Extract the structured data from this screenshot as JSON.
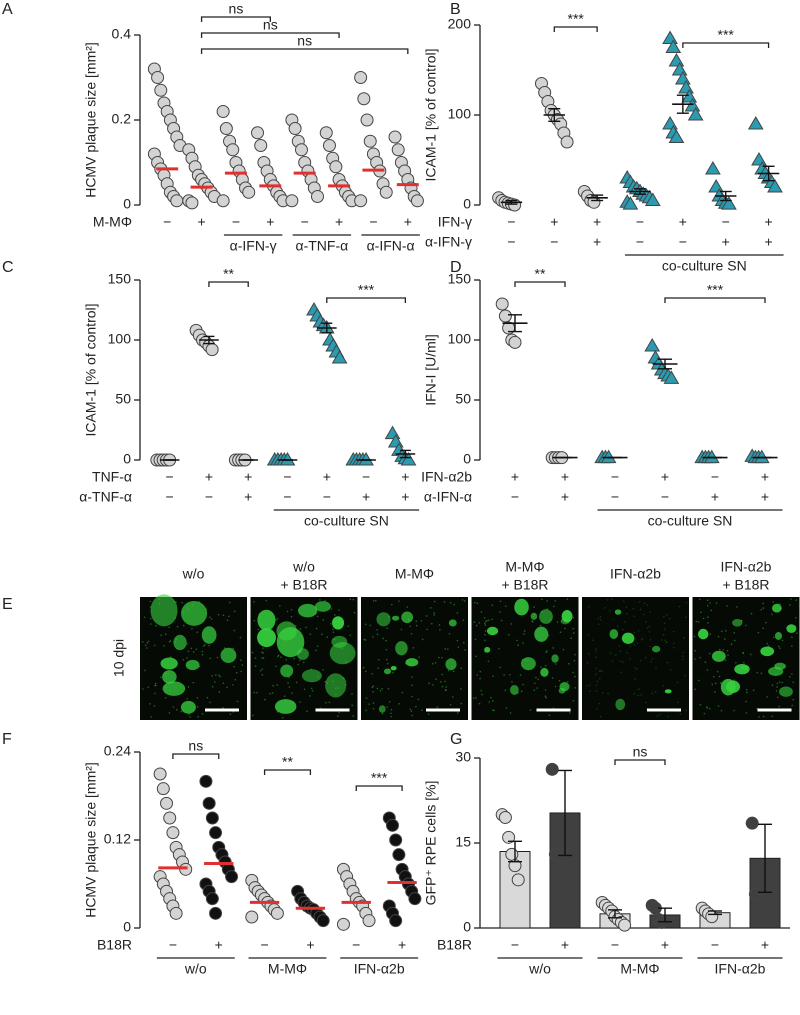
{
  "chart_data": [
    {
      "type": "dot",
      "label": "A",
      "ylabel": "HCMV plaque size [mm²]",
      "ylim": [
        0,
        0.4
      ],
      "yticks": [
        0,
        0.2,
        0.4
      ],
      "groups": [
        {
          "marker": "circle",
          "color": "#d3d3d3",
          "median": 0.085,
          "points": [
            0.32,
            0.3,
            0.27,
            0.24,
            0.22,
            0.2,
            0.18,
            0.16,
            0.14,
            0.12,
            0.1,
            0.085,
            0.07,
            0.05,
            0.03,
            0.02,
            0.01
          ]
        },
        {
          "marker": "circle",
          "color": "#d3d3d3",
          "median": 0.042,
          "points": [
            0.13,
            0.11,
            0.09,
            0.07,
            0.06,
            0.05,
            0.04,
            0.03,
            0.02,
            0.01,
            0.005
          ]
        },
        {
          "marker": "circle",
          "color": "#d3d3d3",
          "median": 0.075,
          "points": [
            0.22,
            0.18,
            0.15,
            0.13,
            0.1,
            0.08,
            0.06,
            0.04,
            0.03,
            0.01
          ]
        },
        {
          "marker": "circle",
          "color": "#d3d3d3",
          "median": 0.045,
          "points": [
            0.17,
            0.14,
            0.1,
            0.08,
            0.06,
            0.045,
            0.03,
            0.02,
            0.01
          ]
        },
        {
          "marker": "circle",
          "color": "#d3d3d3",
          "median": 0.075,
          "points": [
            0.2,
            0.18,
            0.15,
            0.13,
            0.1,
            0.08,
            0.06,
            0.04,
            0.02,
            0.01
          ]
        },
        {
          "marker": "circle",
          "color": "#d3d3d3",
          "median": 0.045,
          "points": [
            0.17,
            0.14,
            0.11,
            0.09,
            0.06,
            0.045,
            0.03,
            0.02,
            0.01
          ]
        },
        {
          "marker": "circle",
          "color": "#d3d3d3",
          "median": 0.082,
          "points": [
            0.3,
            0.25,
            0.2,
            0.15,
            0.12,
            0.1,
            0.08,
            0.05,
            0.03,
            0.01
          ]
        },
        {
          "marker": "circle",
          "color": "#d3d3d3",
          "median": 0.048,
          "points": [
            0.16,
            0.13,
            0.1,
            0.08,
            0.06,
            0.04,
            0.02,
            0.01
          ]
        }
      ],
      "rows": [
        {
          "label": "M-MΦ",
          "values": [
            "−",
            "+",
            "−",
            "+",
            "−",
            "+",
            "−",
            "+"
          ]
        }
      ],
      "underline": [
        null,
        null,
        "α-IFN-γ",
        "α-IFN-γ",
        "α-TNF-α",
        "α-TNF-α",
        "α-IFN-α",
        "α-IFN-α"
      ],
      "brackets": [
        {
          "label": "ns",
          "between": [
            1,
            3
          ]
        },
        {
          "label": "ns",
          "between": [
            1,
            5
          ]
        },
        {
          "label": "ns",
          "between": [
            1,
            7
          ]
        }
      ]
    },
    {
      "type": "dot",
      "label": "B",
      "ylabel": "ICAM-1 [% of control]",
      "ylim": [
        0,
        200
      ],
      "yticks": [
        0,
        100,
        200
      ],
      "groups": [
        {
          "marker": "circle",
          "color": "#d3d3d3",
          "mean": 3,
          "sem": 2,
          "points": [
            8,
            5,
            3,
            2,
            1,
            0
          ]
        },
        {
          "marker": "circle",
          "color": "#d3d3d3",
          "mean": 100,
          "sem": 7,
          "points": [
            135,
            125,
            115,
            105,
            100,
            95,
            90,
            80,
            70
          ]
        },
        {
          "marker": "circle",
          "color": "#d3d3d3",
          "mean": 8,
          "sem": 3,
          "points": [
            15,
            10,
            5,
            3
          ]
        },
        {
          "marker": "triangle",
          "color": "#2a9bb0",
          "mean": 15,
          "sem": 3,
          "points": [
            30,
            25,
            20,
            18,
            15,
            12,
            10,
            8,
            5,
            3,
            1
          ]
        },
        {
          "marker": "triangle",
          "color": "#2a9bb0",
          "mean": 112,
          "sem": 10,
          "points": [
            185,
            175,
            160,
            150,
            140,
            130,
            120,
            110,
            100,
            90,
            80,
            75
          ]
        },
        {
          "marker": "triangle",
          "color": "#2a9bb0",
          "mean": 10,
          "sem": 5,
          "points": [
            40,
            20,
            10,
            5,
            2,
            1
          ]
        },
        {
          "marker": "triangle",
          "color": "#2a9bb0",
          "mean": 35,
          "sem": 8,
          "points": [
            90,
            50,
            40,
            35,
            30,
            25,
            20
          ]
        }
      ],
      "rows": [
        {
          "label": "IFN-γ",
          "values": [
            "−",
            "+",
            "+",
            "−",
            "+",
            "−",
            "+"
          ]
        },
        {
          "label": "α-IFN-γ",
          "values": [
            "−",
            "−",
            "+",
            "−",
            "−",
            "+",
            "+"
          ]
        }
      ],
      "underline": [
        null,
        null,
        null,
        "co-culture SN",
        "co-culture SN",
        "co-culture SN",
        "co-culture SN"
      ],
      "brackets": [
        {
          "label": "***",
          "between": [
            1,
            2
          ]
        },
        {
          "label": "***",
          "between": [
            4,
            6
          ]
        }
      ]
    },
    {
      "type": "dot",
      "label": "C",
      "ylabel": "ICAM-1 [% of control]",
      "ylim": [
        0,
        150
      ],
      "yticks": [
        0,
        50,
        100,
        150
      ],
      "groups": [
        {
          "marker": "circle",
          "color": "#d3d3d3",
          "mean": 0,
          "sem": 0,
          "points": [
            0,
            0,
            0,
            0,
            0
          ]
        },
        {
          "marker": "circle",
          "color": "#d3d3d3",
          "mean": 100,
          "sem": 3,
          "points": [
            108,
            104,
            100,
            98,
            95,
            92
          ]
        },
        {
          "marker": "circle",
          "color": "#d3d3d3",
          "mean": 0,
          "sem": 0,
          "points": [
            0,
            0,
            0,
            0
          ]
        },
        {
          "marker": "triangle",
          "color": "#2a9bb0",
          "mean": 0,
          "sem": 0,
          "points": [
            0,
            0,
            0,
            0,
            0
          ]
        },
        {
          "marker": "triangle",
          "color": "#2a9bb0",
          "mean": 110,
          "sem": 4,
          "points": [
            125,
            120,
            115,
            112,
            110,
            100,
            95,
            90,
            85
          ]
        },
        {
          "marker": "triangle",
          "color": "#2a9bb0",
          "mean": 0,
          "sem": 0,
          "points": [
            0,
            0,
            0,
            0,
            0
          ]
        },
        {
          "marker": "triangle",
          "color": "#2a9bb0",
          "mean": 5,
          "sem": 3,
          "points": [
            22,
            15,
            8,
            3,
            1,
            0
          ]
        }
      ],
      "rows": [
        {
          "label": "TNF-α",
          "values": [
            "−",
            "+",
            "+",
            "−",
            "+",
            "−",
            "+"
          ]
        },
        {
          "label": "α-TNF-α",
          "values": [
            "−",
            "−",
            "+",
            "−",
            "−",
            "+",
            "+"
          ]
        }
      ],
      "underline": [
        null,
        null,
        null,
        "co-culture SN",
        "co-culture SN",
        "co-culture SN",
        "co-culture SN"
      ],
      "brackets": [
        {
          "label": "**",
          "between": [
            1,
            2
          ]
        },
        {
          "label": "***",
          "between": [
            4,
            6
          ]
        }
      ]
    },
    {
      "type": "dot",
      "label": "D",
      "ylabel": "IFN-I [U/ml]",
      "ylim": [
        0,
        150
      ],
      "yticks": [
        0,
        50,
        100,
        150
      ],
      "groups": [
        {
          "marker": "circle",
          "color": "#d3d3d3",
          "mean": 114,
          "sem": 7,
          "points": [
            130,
            120,
            110,
            100,
            98
          ]
        },
        {
          "marker": "circle",
          "color": "#d3d3d3",
          "mean": 2,
          "sem": 0,
          "points": [
            2,
            2,
            2,
            2
          ]
        },
        {
          "marker": "triangle",
          "color": "#2a9bb0",
          "mean": 2,
          "sem": 0,
          "points": [
            2,
            2,
            2
          ]
        },
        {
          "marker": "triangle",
          "color": "#2a9bb0",
          "mean": 80,
          "sem": 4,
          "points": [
            95,
            85,
            80,
            75,
            72,
            70,
            68
          ]
        },
        {
          "marker": "triangle",
          "color": "#2a9bb0",
          "mean": 2,
          "sem": 0,
          "points": [
            2,
            2,
            2,
            2
          ]
        },
        {
          "marker": "triangle",
          "color": "#2a9bb0",
          "mean": 2,
          "sem": 0,
          "points": [
            3,
            2,
            2,
            2
          ]
        }
      ],
      "rows": [
        {
          "label": "IFN-α2b",
          "values": [
            "+",
            "+",
            "−",
            "+",
            "−",
            "+"
          ]
        },
        {
          "label": "α-IFN-α",
          "values": [
            "−",
            "+",
            "−",
            "−",
            "+",
            "+"
          ]
        }
      ],
      "underline": [
        null,
        null,
        "co-culture SN",
        "co-culture SN",
        "co-culture SN",
        "co-culture SN"
      ],
      "brackets": [
        {
          "label": "**",
          "between": [
            0,
            1
          ]
        },
        {
          "label": "***",
          "between": [
            3,
            5
          ]
        }
      ]
    },
    {
      "type": "dot",
      "label": "F",
      "ylabel": "HCMV plaque size [mm²]",
      "ylim": [
        0,
        0.24
      ],
      "yticks": [
        0,
        0.12,
        0.24
      ],
      "groups": [
        {
          "marker": "circle",
          "color": "#d3d3d3",
          "median": 0.082,
          "points": [
            0.21,
            0.19,
            0.17,
            0.15,
            0.13,
            0.11,
            0.1,
            0.09,
            0.08,
            0.07,
            0.06,
            0.05,
            0.04,
            0.03,
            0.02
          ]
        },
        {
          "marker": "circle",
          "color": "#111111",
          "median": 0.088,
          "points": [
            0.2,
            0.17,
            0.15,
            0.13,
            0.11,
            0.1,
            0.09,
            0.08,
            0.07,
            0.06,
            0.05,
            0.04,
            0.02
          ]
        },
        {
          "marker": "circle",
          "color": "#d3d3d3",
          "median": 0.035,
          "points": [
            0.065,
            0.055,
            0.05,
            0.045,
            0.04,
            0.035,
            0.03,
            0.025,
            0.02,
            0.015
          ]
        },
        {
          "marker": "circle",
          "color": "#111111",
          "median": 0.027,
          "points": [
            0.05,
            0.04,
            0.035,
            0.03,
            0.027,
            0.025,
            0.02,
            0.015,
            0.01
          ]
        },
        {
          "marker": "circle",
          "color": "#d3d3d3",
          "median": 0.035,
          "points": [
            0.08,
            0.07,
            0.06,
            0.05,
            0.04,
            0.035,
            0.03,
            0.02,
            0.01,
            0.005
          ]
        },
        {
          "marker": "circle",
          "color": "#111111",
          "median": 0.062,
          "points": [
            0.15,
            0.14,
            0.12,
            0.1,
            0.08,
            0.07,
            0.06,
            0.05,
            0.04,
            0.03,
            0.02,
            0.01
          ]
        }
      ],
      "rows": [
        {
          "label": "B18R",
          "values": [
            "−",
            "+",
            "−",
            "+",
            "−",
            "+"
          ]
        }
      ],
      "underline": [
        "w/o",
        "w/o",
        "M-MΦ",
        "M-MΦ",
        "IFN-α2b",
        "IFN-α2b"
      ],
      "brackets": [
        {
          "label": "ns",
          "between": [
            0,
            1
          ]
        },
        {
          "label": "**",
          "between": [
            2,
            3
          ]
        },
        {
          "label": "***",
          "between": [
            4,
            5
          ]
        }
      ]
    },
    {
      "type": "bar",
      "label": "G",
      "ylabel": "GFP⁺ RPE cells [%]",
      "ylim": [
        0,
        30
      ],
      "yticks": [
        0,
        15,
        30
      ],
      "groups": [
        {
          "marker": "circle",
          "color": "#d9d9d9",
          "mean": 13.5,
          "sem": 1.8,
          "points": [
            20,
            19.5,
            16,
            13,
            11,
            8.5
          ]
        },
        {
          "marker": "circle",
          "color": "#404040",
          "mean": 20.3,
          "sem": 7.5,
          "points": [
            28,
            13
          ]
        },
        {
          "marker": "circle",
          "color": "#d9d9d9",
          "mean": 2.5,
          "sem": 0.7,
          "points": [
            4.5,
            4,
            3.5,
            3,
            2,
            1.5,
            1,
            0.5
          ]
        },
        {
          "marker": "circle",
          "color": "#404040",
          "mean": 2.3,
          "sem": 1.2,
          "points": [
            4,
            3.5,
            1.5,
            1
          ]
        },
        {
          "marker": "circle",
          "color": "#d9d9d9",
          "mean": 2.7,
          "sem": 0.3,
          "points": [
            3.5,
            3,
            2.5,
            2
          ]
        },
        {
          "marker": "circle",
          "color": "#404040",
          "mean": 12.3,
          "sem": 6,
          "points": [
            18.5,
            6
          ]
        }
      ],
      "rows": [
        {
          "label": "B18R",
          "values": [
            "−",
            "+",
            "−",
            "+",
            "−",
            "+"
          ]
        }
      ],
      "underline": [
        "w/o",
        "w/o",
        "M-MΦ",
        "M-MΦ",
        "IFN-α2b",
        "IFN-α2b"
      ],
      "brackets": [
        {
          "label": "ns",
          "between": [
            2,
            3
          ]
        }
      ]
    }
  ],
  "panel_e": {
    "label": "E",
    "side_label": "10 dpi",
    "titles": [
      [
        "w/o"
      ],
      [
        "w/o",
        "+ B18R"
      ],
      [
        "M-MΦ"
      ],
      [
        "M-MΦ",
        "+ B18R"
      ],
      [
        "IFN-α2b"
      ],
      [
        "IFN-α2b",
        "+ B18R"
      ]
    ]
  }
}
